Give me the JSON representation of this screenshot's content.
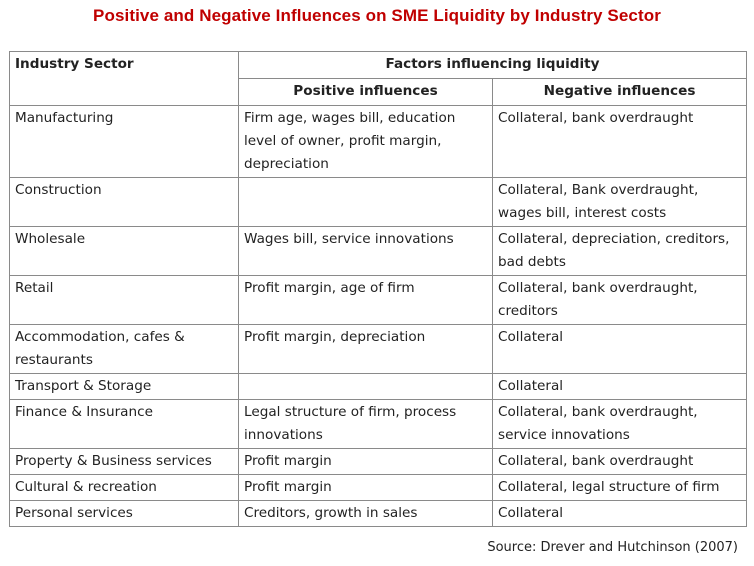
{
  "title": "Positive and Negative Influences on SME Liquidity by Industry Sector",
  "table": {
    "header": {
      "sector": "Industry  Sector",
      "factors": "Factors influencing liquidity",
      "positive": "Positive influences",
      "negative": "Negative influences"
    },
    "rows": [
      {
        "sector": "Manufacturing",
        "positive": "Firm age, wages bill, education level of owner, profit margin, depreciation",
        "negative": "Collateral, bank overdraught"
      },
      {
        "sector": "Construction",
        "positive": "",
        "negative": "Collateral, Bank overdraught, wages bill, interest costs"
      },
      {
        "sector": "Wholesale",
        "positive": "Wages bill, service innovations",
        "negative": "Collateral, depreciation, creditors, bad debts"
      },
      {
        "sector": "Retail",
        "positive": "Profit margin, age of firm",
        "negative": "Collateral, bank overdraught, creditors"
      },
      {
        "sector": "Accommodation, cafes & restaurants",
        "positive": "Profit margin, depreciation",
        "negative": "Collateral"
      },
      {
        "sector": "Transport & Storage",
        "positive": "",
        "negative": "Collateral"
      },
      {
        "sector": "Finance & Insurance",
        "positive": "Legal structure of firm, process innovations",
        "negative": "Collateral, bank overdraught, service innovations"
      },
      {
        "sector": "Property & Business services",
        "positive": "Profit margin",
        "negative": "Collateral, bank overdraught"
      },
      {
        "sector": "Cultural & recreation",
        "positive": "Profit margin",
        "negative": "Collateral, legal structure of firm"
      },
      {
        "sector": "Personal services",
        "positive": "Creditors, growth in sales",
        "negative": "Collateral"
      }
    ]
  },
  "source": "Source: Drever and Hutchinson (2007)",
  "colors": {
    "title": "#c00000",
    "border": "#8a8a8a"
  }
}
